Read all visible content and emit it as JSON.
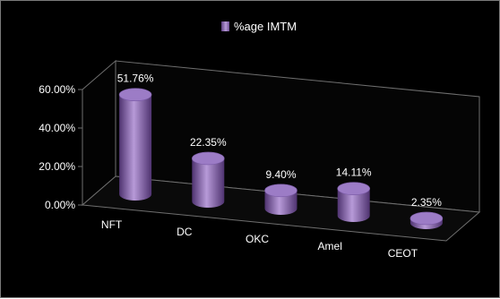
{
  "chart_data": {
    "type": "bar",
    "style": "3d-cylinder",
    "title": "",
    "xlabel": "",
    "ylabel": "",
    "categories": [
      "NFT",
      "DC",
      "OKC",
      "Amel",
      "CEOT"
    ],
    "series": [
      {
        "name": "%age IMTM",
        "values": [
          51.76,
          22.35,
          9.4,
          14.11,
          2.35
        ],
        "value_labels": [
          "51.76%",
          "22.35%",
          "9.40%",
          "14.11%",
          "2.35%"
        ]
      }
    ],
    "y_ticks": [
      "0.00%",
      "20.00%",
      "40.00%",
      "60.00%"
    ],
    "ylim": [
      0,
      60
    ],
    "grid": false,
    "legend": "top-center",
    "colors": {
      "background": "#000000",
      "bar_light": "#b79ad8",
      "bar_mid": "#8a65b8",
      "bar_dark": "#4f3370",
      "bar_top": "#9c7cc6",
      "wall": "#6f6f6f",
      "text": "#ffffff"
    }
  }
}
